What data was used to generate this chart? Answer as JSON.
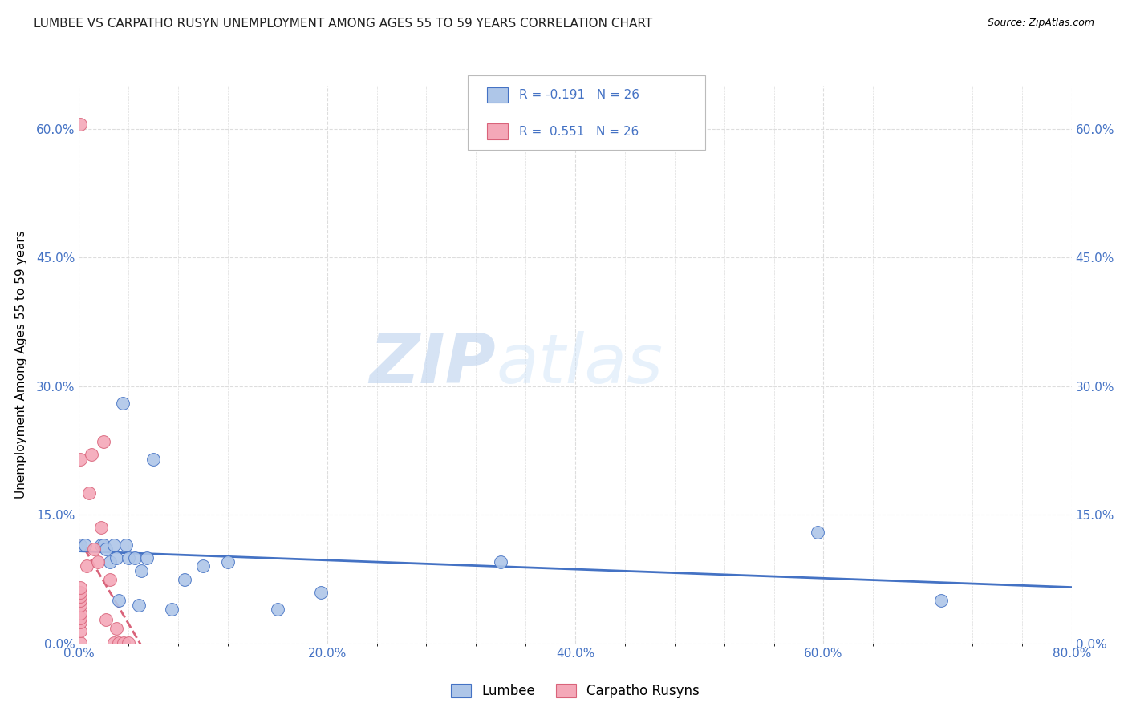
{
  "title": "LUMBEE VS CARPATHO RUSYN UNEMPLOYMENT AMONG AGES 55 TO 59 YEARS CORRELATION CHART",
  "source": "Source: ZipAtlas.com",
  "ylabel": "Unemployment Among Ages 55 to 59 years",
  "xlim": [
    0.0,
    0.8
  ],
  "ylim": [
    0.0,
    0.65
  ],
  "xtick_labels": [
    "0.0%",
    "",
    "",
    "",
    "",
    "20.0%",
    "",
    "",
    "",
    "",
    "40.0%",
    "",
    "",
    "",
    "",
    "60.0%",
    "",
    "",
    "",
    "",
    "80.0%"
  ],
  "xtick_values": [
    0.0,
    0.04,
    0.08,
    0.12,
    0.16,
    0.2,
    0.24,
    0.28,
    0.32,
    0.36,
    0.4,
    0.44,
    0.48,
    0.52,
    0.56,
    0.6,
    0.64,
    0.68,
    0.72,
    0.76,
    0.8
  ],
  "ytick_values": [
    0.0,
    0.15,
    0.3,
    0.45,
    0.6
  ],
  "ytick_labels": [
    "0.0%",
    "15.0%",
    "30.0%",
    "45.0%",
    "60.0%"
  ],
  "lumbee_color": "#AEC6E8",
  "carpatho_color": "#F4A8B8",
  "lumbee_line_color": "#4472C4",
  "carpatho_line_color": "#D9637A",
  "R_lumbee": -0.191,
  "N_lumbee": 26,
  "R_carpatho": 0.551,
  "N_carpatho": 26,
  "lumbee_x": [
    0.001,
    0.005,
    0.018,
    0.02,
    0.022,
    0.025,
    0.028,
    0.03,
    0.032,
    0.035,
    0.038,
    0.04,
    0.045,
    0.048,
    0.05,
    0.055,
    0.06,
    0.075,
    0.085,
    0.1,
    0.12,
    0.16,
    0.195,
    0.34,
    0.595,
    0.695
  ],
  "lumbee_y": [
    0.115,
    0.115,
    0.115,
    0.115,
    0.11,
    0.095,
    0.115,
    0.1,
    0.05,
    0.28,
    0.115,
    0.1,
    0.1,
    0.045,
    0.085,
    0.1,
    0.215,
    0.04,
    0.075,
    0.09,
    0.095,
    0.04,
    0.06,
    0.095,
    0.13,
    0.05
  ],
  "carpatho_x": [
    0.001,
    0.001,
    0.001,
    0.001,
    0.001,
    0.001,
    0.001,
    0.001,
    0.001,
    0.001,
    0.001,
    0.001,
    0.006,
    0.008,
    0.01,
    0.012,
    0.015,
    0.018,
    0.02,
    0.022,
    0.025,
    0.028,
    0.03,
    0.032,
    0.036,
    0.04
  ],
  "carpatho_y": [
    0.001,
    0.015,
    0.025,
    0.03,
    0.035,
    0.045,
    0.05,
    0.055,
    0.06,
    0.065,
    0.605,
    0.215,
    0.09,
    0.175,
    0.22,
    0.11,
    0.095,
    0.135,
    0.235,
    0.028,
    0.075,
    0.001,
    0.018,
    0.001,
    0.001,
    0.001
  ],
  "watermark_zip": "ZIP",
  "watermark_atlas": "atlas",
  "background_color": "#FFFFFF",
  "grid_color": "#DDDDDD",
  "title_color": "#222222",
  "axis_color": "#4472C4"
}
